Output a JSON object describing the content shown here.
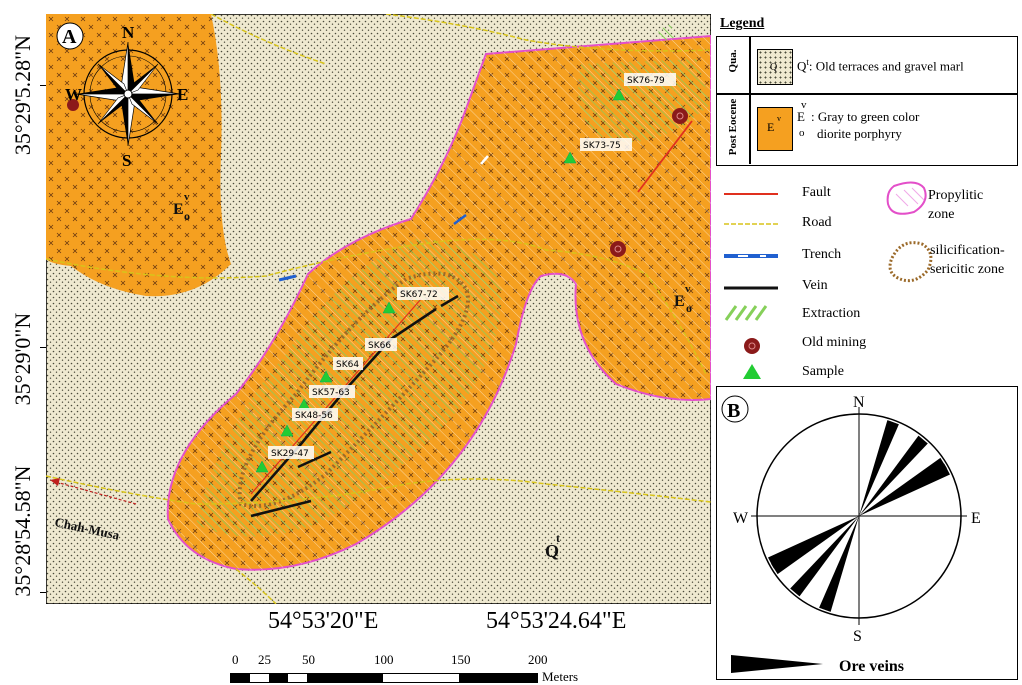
{
  "panel_a": {
    "label": "A",
    "compass": {
      "n": "N",
      "s": "S",
      "e": "E",
      "w": "W"
    },
    "lat_labels": [
      "35°29'5.28\"N",
      "35°29'0\"N",
      "35°28'54.58\"N"
    ],
    "lon_labels": [
      "54°53'20\"E",
      "54°53'24.64\"E"
    ],
    "unit_labels": [
      {
        "main": "E",
        "sup": "v",
        "sub": "o"
      },
      {
        "main": "E",
        "sup": "v",
        "sub": "o"
      },
      {
        "main": "Q",
        "sup": "t",
        "sub": ""
      }
    ],
    "place_label": "Chah-Musa",
    "samples": [
      "SK76-79",
      "SK73-75",
      "SK67-72",
      "SK66",
      "SK64",
      "SK57-63",
      "SK48-56",
      "SK29-47"
    ],
    "colors": {
      "terrace": "#efe9d0",
      "porphyry": "#f5a020",
      "propylitic": "#e34fc9",
      "silicification": "#9b6a2a",
      "fault": "#e0301e",
      "road": "#d8c41a",
      "trench": "#2060d0",
      "extraction": "#86d05a",
      "old_mining": "#8b1a1a",
      "sample": "#22cc33"
    }
  },
  "scale_bar": {
    "ticks": [
      "0",
      "25",
      "50",
      "100",
      "150",
      "200"
    ],
    "unit": "Meters"
  },
  "legend": {
    "title": "Legend",
    "units": [
      {
        "group": "Qua.",
        "symbol": "Q",
        "sup": "t",
        "desc": ": Old terraces and gravel marl"
      },
      {
        "group": "Post Eocene",
        "symbol": "E",
        "sup": "v",
        "sub": "o",
        "desc_line1": ": Gray to green color",
        "desc_line2": "diorite porphyry"
      }
    ],
    "items": {
      "fault": "Fault",
      "road": "Road",
      "trench": "Trench",
      "vein": "Vein",
      "extraction": "Extraction",
      "old_mining": "Old mining",
      "sample": "Sample",
      "propylitic_1": "Propylitic",
      "propylitic_2": "zone",
      "silicification_1": "silicification-",
      "silicification_2": "sericitic zone"
    }
  },
  "panel_b": {
    "label": "B",
    "n": "N",
    "s": "S",
    "e": "E",
    "w": "W",
    "caption": "Ore veins",
    "rose_petals_deg": [
      20,
      40,
      58,
      62
    ]
  }
}
